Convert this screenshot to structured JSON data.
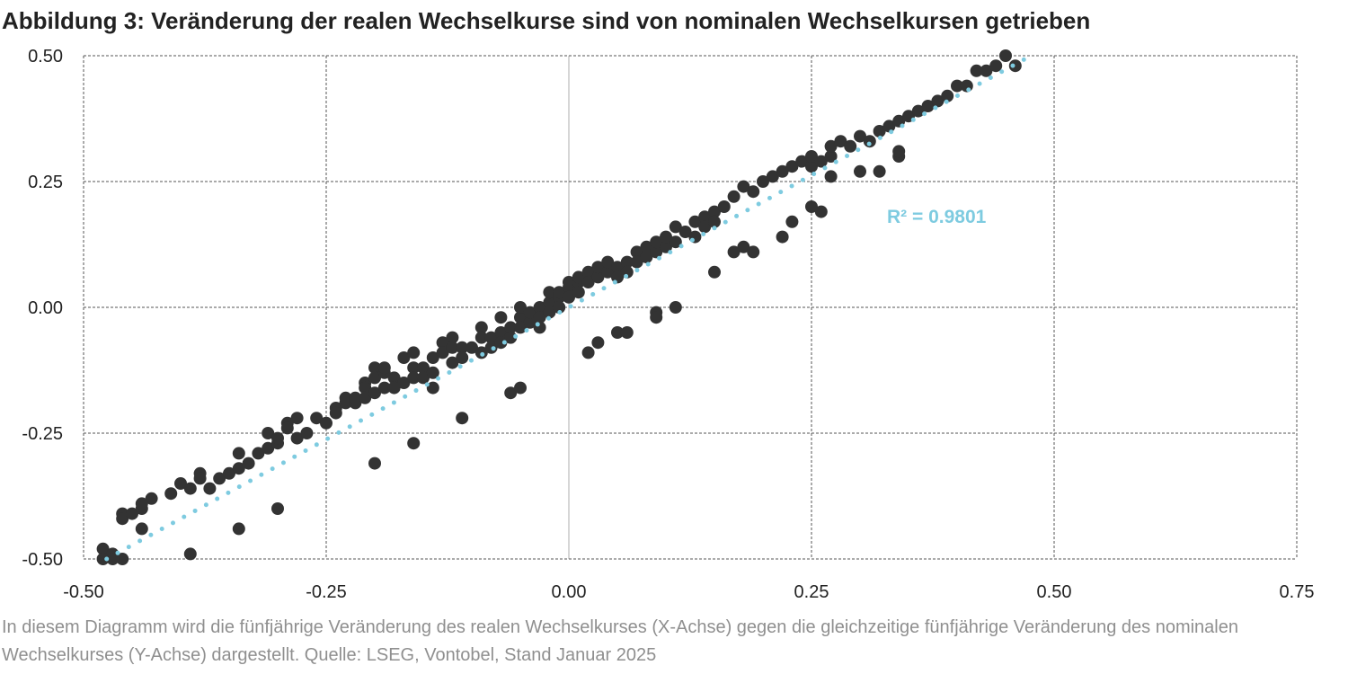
{
  "title": "Abbildung 3: Veränderung der realen Wechselkurse sind von nominalen Wechselkursen getrieben",
  "caption": "In diesem Diagramm wird die fünfjährige Veränderung des realen Wechselkurses (X-Achse) gegen die gleichzeitige fünfjährige Veränderung des nominalen Wechselkurses (Y-Achse) dargestellt. Quelle: LSEG, Vontobel, Stand Januar 2025",
  "colors": {
    "points": "#333333",
    "trendline": "#7ecbe0",
    "grid": "#555555",
    "zero_line": "#c8c8c8",
    "caption": "#8f8f8f"
  },
  "chart_data": {
    "type": "scatter",
    "title": "Abbildung 3: Veränderung der realen Wechselkurse sind von nominalen Wechselkursen getrieben",
    "xlabel": "",
    "ylabel": "",
    "xlim": [
      -0.5,
      0.75
    ],
    "ylim": [
      -0.5,
      0.5
    ],
    "x_ticks": [
      "-0.50",
      "-0.25",
      "0.00",
      "0.25",
      "0.50",
      "0.75"
    ],
    "y_ticks": [
      "0.50",
      "0.25",
      "0.00",
      "-0.25",
      "-0.50"
    ],
    "grid": true,
    "trendline": {
      "type": "linear",
      "slope": 1.05,
      "intercept": 0.0,
      "label": "R² = 0.9801"
    },
    "points": [
      [
        -0.48,
        -0.48
      ],
      [
        -0.47,
        -0.49
      ],
      [
        -0.48,
        -0.5
      ],
      [
        -0.46,
        -0.5
      ],
      [
        -0.46,
        -0.41
      ],
      [
        -0.46,
        -0.42
      ],
      [
        -0.45,
        -0.41
      ],
      [
        -0.44,
        -0.4
      ],
      [
        -0.44,
        -0.39
      ],
      [
        -0.44,
        -0.44
      ],
      [
        -0.43,
        -0.38
      ],
      [
        -0.41,
        -0.37
      ],
      [
        -0.4,
        -0.35
      ],
      [
        -0.39,
        -0.36
      ],
      [
        -0.38,
        -0.33
      ],
      [
        -0.38,
        -0.34
      ],
      [
        -0.37,
        -0.36
      ],
      [
        -0.36,
        -0.34
      ],
      [
        -0.35,
        -0.33
      ],
      [
        -0.34,
        -0.32
      ],
      [
        -0.34,
        -0.29
      ],
      [
        -0.33,
        -0.31
      ],
      [
        -0.32,
        -0.29
      ],
      [
        -0.31,
        -0.28
      ],
      [
        -0.31,
        -0.25
      ],
      [
        -0.3,
        -0.27
      ],
      [
        -0.3,
        -0.26
      ],
      [
        -0.29,
        -0.23
      ],
      [
        -0.29,
        -0.24
      ],
      [
        -0.28,
        -0.22
      ],
      [
        -0.28,
        -0.26
      ],
      [
        -0.27,
        -0.25
      ],
      [
        -0.26,
        -0.22
      ],
      [
        -0.25,
        -0.23
      ],
      [
        -0.24,
        -0.2
      ],
      [
        -0.24,
        -0.21
      ],
      [
        -0.23,
        -0.19
      ],
      [
        -0.23,
        -0.18
      ],
      [
        -0.22,
        -0.19
      ],
      [
        -0.22,
        -0.18
      ],
      [
        -0.21,
        -0.15
      ],
      [
        -0.21,
        -0.16
      ],
      [
        -0.21,
        -0.18
      ],
      [
        -0.2,
        -0.12
      ],
      [
        -0.2,
        -0.14
      ],
      [
        -0.2,
        -0.17
      ],
      [
        -0.19,
        -0.13
      ],
      [
        -0.19,
        -0.12
      ],
      [
        -0.19,
        -0.16
      ],
      [
        -0.18,
        -0.14
      ],
      [
        -0.18,
        -0.16
      ],
      [
        -0.17,
        -0.15
      ],
      [
        -0.17,
        -0.1
      ],
      [
        -0.16,
        -0.09
      ],
      [
        -0.16,
        -0.12
      ],
      [
        -0.16,
        -0.14
      ],
      [
        -0.15,
        -0.12
      ],
      [
        -0.15,
        -0.14
      ],
      [
        -0.14,
        -0.1
      ],
      [
        -0.14,
        -0.13
      ],
      [
        -0.14,
        -0.16
      ],
      [
        -0.13,
        -0.07
      ],
      [
        -0.13,
        -0.09
      ],
      [
        -0.12,
        -0.06
      ],
      [
        -0.12,
        -0.08
      ],
      [
        -0.12,
        -0.11
      ],
      [
        -0.11,
        -0.08
      ],
      [
        -0.11,
        -0.1
      ],
      [
        -0.1,
        -0.08
      ],
      [
        -0.09,
        -0.04
      ],
      [
        -0.09,
        -0.06
      ],
      [
        -0.09,
        -0.09
      ],
      [
        -0.08,
        -0.06
      ],
      [
        -0.08,
        -0.08
      ],
      [
        -0.07,
        -0.02
      ],
      [
        -0.07,
        -0.05
      ],
      [
        -0.07,
        -0.07
      ],
      [
        -0.06,
        -0.04
      ],
      [
        -0.06,
        -0.06
      ],
      [
        -0.05,
        -0.02
      ],
      [
        -0.05,
        -0.04
      ],
      [
        -0.05,
        0.0
      ],
      [
        -0.04,
        -0.03
      ],
      [
        -0.04,
        -0.01
      ],
      [
        -0.03,
        0.0
      ],
      [
        -0.03,
        -0.02
      ],
      [
        -0.03,
        -0.04
      ],
      [
        -0.02,
        0.01
      ],
      [
        -0.02,
        -0.01
      ],
      [
        -0.02,
        0.03
      ],
      [
        -0.01,
        0.02
      ],
      [
        -0.01,
        0.0
      ],
      [
        -0.01,
        0.03
      ],
      [
        0.0,
        0.04
      ],
      [
        0.0,
        0.02
      ],
      [
        0.0,
        0.05
      ],
      [
        0.01,
        0.05
      ],
      [
        0.01,
        0.03
      ],
      [
        0.01,
        0.06
      ],
      [
        0.02,
        0.07
      ],
      [
        0.02,
        0.05
      ],
      [
        0.03,
        0.06
      ],
      [
        0.03,
        0.08
      ],
      [
        0.04,
        0.07
      ],
      [
        0.04,
        0.09
      ],
      [
        0.05,
        0.08
      ],
      [
        0.05,
        0.06
      ],
      [
        0.06,
        0.09
      ],
      [
        0.06,
        0.07
      ],
      [
        0.07,
        0.11
      ],
      [
        0.07,
        0.09
      ],
      [
        0.08,
        0.1
      ],
      [
        0.08,
        0.12
      ],
      [
        0.09,
        0.11
      ],
      [
        0.09,
        0.13
      ],
      [
        0.1,
        0.12
      ],
      [
        0.1,
        0.14
      ],
      [
        0.11,
        0.16
      ],
      [
        0.11,
        0.13
      ],
      [
        0.12,
        0.15
      ],
      [
        0.13,
        0.17
      ],
      [
        0.13,
        0.14
      ],
      [
        0.14,
        0.18
      ],
      [
        0.14,
        0.16
      ],
      [
        0.15,
        0.19
      ],
      [
        0.15,
        0.17
      ],
      [
        0.16,
        0.2
      ],
      [
        0.17,
        0.22
      ],
      [
        0.18,
        0.24
      ],
      [
        0.19,
        0.23
      ],
      [
        0.2,
        0.25
      ],
      [
        0.21,
        0.26
      ],
      [
        0.22,
        0.27
      ],
      [
        0.23,
        0.28
      ],
      [
        0.24,
        0.29
      ],
      [
        0.25,
        0.28
      ],
      [
        0.25,
        0.3
      ],
      [
        0.26,
        0.29
      ],
      [
        0.27,
        0.3
      ],
      [
        0.27,
        0.32
      ],
      [
        0.28,
        0.33
      ],
      [
        0.29,
        0.32
      ],
      [
        0.3,
        0.34
      ],
      [
        0.31,
        0.33
      ],
      [
        0.32,
        0.35
      ],
      [
        0.33,
        0.36
      ],
      [
        0.34,
        0.37
      ],
      [
        0.35,
        0.38
      ],
      [
        0.36,
        0.39
      ],
      [
        0.37,
        0.4
      ],
      [
        0.38,
        0.41
      ],
      [
        0.39,
        0.42
      ],
      [
        0.4,
        0.44
      ],
      [
        0.41,
        0.44
      ],
      [
        0.42,
        0.47
      ],
      [
        0.43,
        0.47
      ],
      [
        0.44,
        0.48
      ],
      [
        0.45,
        0.5
      ],
      [
        0.46,
        0.48
      ],
      [
        -0.47,
        -0.5
      ],
      [
        -0.39,
        -0.49
      ],
      [
        -0.34,
        -0.44
      ],
      [
        -0.3,
        -0.4
      ],
      [
        -0.2,
        -0.31
      ],
      [
        -0.16,
        -0.27
      ],
      [
        -0.11,
        -0.22
      ],
      [
        -0.06,
        -0.17
      ],
      [
        -0.05,
        -0.16
      ],
      [
        0.02,
        -0.09
      ],
      [
        0.03,
        -0.07
      ],
      [
        0.05,
        -0.05
      ],
      [
        0.06,
        -0.05
      ],
      [
        0.09,
        -0.01
      ],
      [
        0.09,
        -0.02
      ],
      [
        0.11,
        0.0
      ],
      [
        0.15,
        0.07
      ],
      [
        0.17,
        0.11
      ],
      [
        0.18,
        0.12
      ],
      [
        0.19,
        0.11
      ],
      [
        0.22,
        0.14
      ],
      [
        0.23,
        0.17
      ],
      [
        0.25,
        0.2
      ],
      [
        0.26,
        0.19
      ],
      [
        0.27,
        0.26
      ],
      [
        0.3,
        0.27
      ],
      [
        0.32,
        0.27
      ],
      [
        0.34,
        0.3
      ],
      [
        0.34,
        0.31
      ]
    ]
  }
}
